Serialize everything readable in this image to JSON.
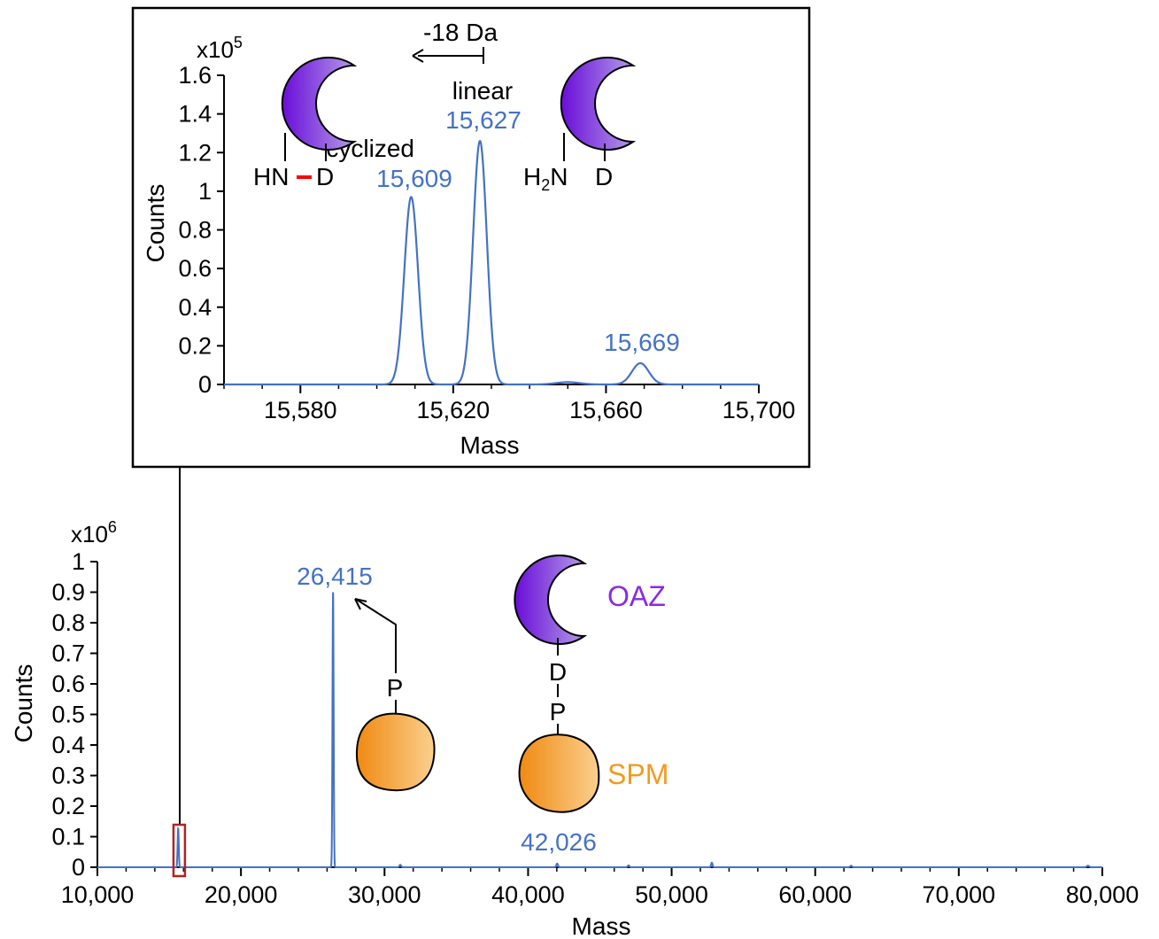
{
  "colors": {
    "spectrum": "#4472C4",
    "oaz": "#8A2BE2",
    "spm": "#F39A1F",
    "bond": "#FF0000",
    "highlight_box": "#B22222",
    "axis": "#000000"
  },
  "chart_data": [
    {
      "id": "main",
      "type": "line",
      "xlabel": "Mass",
      "ylabel": "Counts",
      "y_exponent_label": "x10",
      "y_exponent_power": "6",
      "xlim": [
        10000,
        80000
      ],
      "ylim": [
        0,
        1
      ],
      "x_ticks": [
        10000,
        20000,
        30000,
        40000,
        50000,
        60000,
        70000,
        80000
      ],
      "x_tick_labels": [
        "10,000",
        "20,000",
        "30,000",
        "40,000",
        "50,000",
        "60,000",
        "70,000",
        "80,000"
      ],
      "y_ticks": [
        0,
        0.1,
        0.2,
        0.3,
        0.4,
        0.5,
        0.6,
        0.7,
        0.8,
        0.9,
        1
      ],
      "y_tick_labels": [
        "0",
        "0.1",
        "0.2",
        "0.3",
        "0.4",
        "0.5",
        "0.6",
        "0.7",
        "0.8",
        "0.9",
        "1"
      ],
      "grid": false,
      "peaks": [
        {
          "mass": 15627,
          "counts": 0.127,
          "width": 40
        },
        {
          "mass": 26415,
          "counts": 0.9,
          "width": 40
        },
        {
          "mass": 31100,
          "counts": 0.008,
          "width": 60
        },
        {
          "mass": 42026,
          "counts": 0.012,
          "width": 60
        },
        {
          "mass": 47000,
          "counts": 0.006,
          "width": 60
        },
        {
          "mass": 52800,
          "counts": 0.015,
          "width": 50
        },
        {
          "mass": 62500,
          "counts": 0.005,
          "width": 60
        },
        {
          "mass": 79000,
          "counts": 0.005,
          "width": 80
        }
      ],
      "annotations": [
        {
          "text": "26,415",
          "mass": 26415
        },
        {
          "text": "42,026",
          "mass": 42026
        }
      ],
      "highlight_box_range": [
        15300,
        16100
      ]
    },
    {
      "id": "inset",
      "type": "line",
      "xlabel": "Mass",
      "ylabel": "Counts",
      "y_exponent_label": "x10",
      "y_exponent_power": "5",
      "xlim": [
        15560,
        15700
      ],
      "ylim": [
        0,
        1.6
      ],
      "x_ticks": [
        15580,
        15620,
        15660,
        15700
      ],
      "x_tick_labels": [
        "15,580",
        "15,620",
        "15,660",
        "15,700"
      ],
      "y_ticks": [
        0,
        0.2,
        0.4,
        0.6,
        0.8,
        1,
        1.2,
        1.4,
        1.6
      ],
      "y_tick_labels": [
        "0",
        "0.2",
        "0.4",
        "0.6",
        "0.8",
        "1",
        "1.2",
        "1.4",
        "1.6"
      ],
      "grid": false,
      "peaks": [
        {
          "mass": 15609,
          "counts": 0.97,
          "width": 1.8
        },
        {
          "mass": 15627,
          "counts": 1.26,
          "width": 1.8
        },
        {
          "mass": 15650,
          "counts": 0.012,
          "width": 3
        },
        {
          "mass": 15669,
          "counts": 0.11,
          "width": 2.2
        }
      ],
      "annotations": [
        {
          "name": "cyclized",
          "text": "15,609",
          "mass": 15609
        },
        {
          "name": "linear",
          "text": "15,627",
          "mass": 15627
        },
        {
          "name": "minor",
          "text": "15,669",
          "mass": 15669
        }
      ]
    }
  ],
  "inset_labels": {
    "cyclized": "cyclized",
    "linear": "linear",
    "mass_shift": "-18 Da",
    "hn": "HN",
    "d": "D",
    "h2n_h": "H",
    "h2n_sub": "2",
    "h2n_n": "N"
  },
  "main_labels": {
    "oaz": "OAZ",
    "spm": "SPM",
    "p": "P",
    "d": "D"
  }
}
